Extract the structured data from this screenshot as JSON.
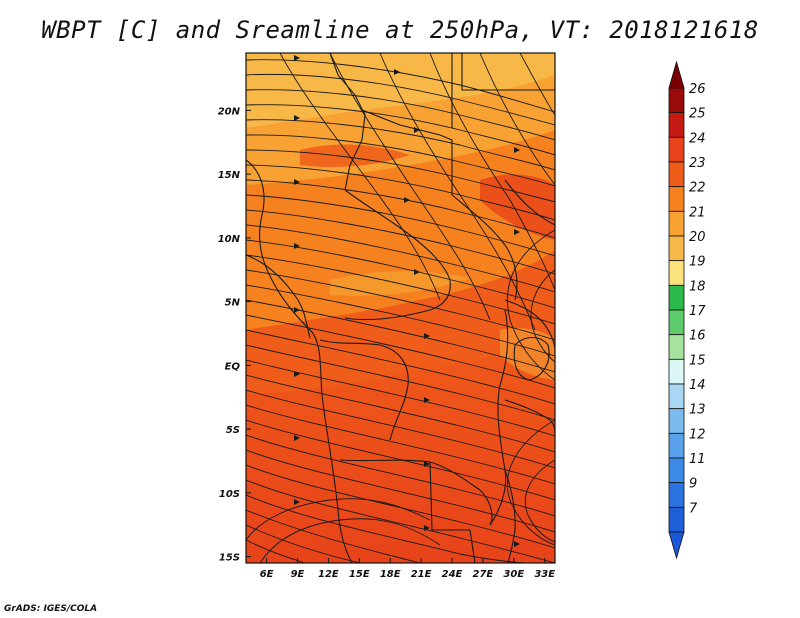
{
  "title": "WBPT [C] and Sreamline at 250hPa, VT: 2018121618",
  "credit": "GrADS: IGES/COLA",
  "map": {
    "lon_labels": [
      "6E",
      "9E",
      "12E",
      "15E",
      "18E",
      "21E",
      "24E",
      "27E",
      "30E",
      "33E"
    ],
    "lat_labels": [
      "20N",
      "15N",
      "10N",
      "5N",
      "EQ",
      "5S",
      "10S",
      "15S"
    ],
    "lon_values": [
      6,
      9,
      12,
      15,
      18,
      21,
      24,
      27,
      30,
      33
    ],
    "lat_values": [
      20,
      15,
      10,
      5,
      0,
      -5,
      -10,
      -15
    ],
    "lon_range": [
      4,
      34
    ],
    "lat_range": [
      -15.5,
      24.5
    ],
    "field_colors": {
      "level_20": "#f8b848",
      "level_21": "#f7a233",
      "level_22": "#f6821f",
      "level_23": "#f05c1a",
      "level_24": "#e8431a"
    },
    "streamline_color": "#1a1a1a",
    "border_color": "#1a1a1a"
  },
  "colorbar": {
    "levels": [
      {
        "label": "26",
        "color": "#9a0a0a"
      },
      {
        "label": "25",
        "color": "#c41a14"
      },
      {
        "label": "24",
        "color": "#e8431a"
      },
      {
        "label": "23",
        "color": "#f05c1a"
      },
      {
        "label": "22",
        "color": "#f6821f"
      },
      {
        "label": "21",
        "color": "#f7a233"
      },
      {
        "label": "20",
        "color": "#f8b848"
      },
      {
        "label": "19",
        "color": "#fce27c"
      },
      {
        "label": "18",
        "color": "#2db84a"
      },
      {
        "label": "17",
        "color": "#5ecb6a"
      },
      {
        "label": "16",
        "color": "#a6e3a1"
      },
      {
        "label": "15",
        "color": "#ddf8f4"
      },
      {
        "label": "14",
        "color": "#a9d6f3"
      },
      {
        "label": "13",
        "color": "#7bbbee"
      },
      {
        "label": "12",
        "color": "#5aa3ec"
      },
      {
        "label": "11",
        "color": "#3c8ae8"
      },
      {
        "label": "9",
        "color": "#2b74e0"
      },
      {
        "label": "7",
        "color": "#1f5fd8"
      }
    ],
    "top_arrow_color": "#7a0000",
    "bottom_arrow_color": "#1d56d6"
  }
}
